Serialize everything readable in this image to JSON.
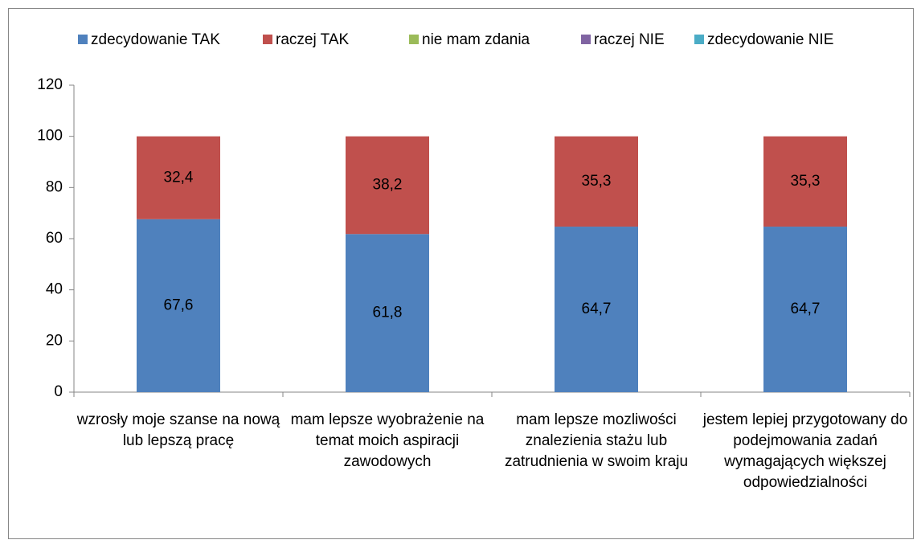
{
  "chart_data": {
    "type": "stacked_bar",
    "categories": [
      "wzrosły moje szanse na nową lub lepszą pracę",
      "mam lepsze wyobrażenie na temat moich aspiracji zawodowych",
      "mam lepsze mozliwości znalezienia stażu lub zatrudnienia w swoim kraju",
      "jestem lepiej przygotowany do podejmowania zadań wymagających większej odpowiedzialności"
    ],
    "series": [
      {
        "name": "zdecydowanie TAK",
        "color": "#4f81bd",
        "values": [
          67.6,
          61.8,
          64.7,
          64.7
        ],
        "value_labels": [
          "67,6",
          "61,8",
          "64,7",
          "64,7"
        ]
      },
      {
        "name": "raczej TAK",
        "color": "#c0504d",
        "values": [
          32.4,
          38.2,
          35.3,
          35.3
        ],
        "value_labels": [
          "32,4",
          "38,2",
          "35,3",
          "35,3"
        ]
      },
      {
        "name": "nie mam zdania",
        "color": "#9bbb59",
        "values": [
          0,
          0,
          0,
          0
        ]
      },
      {
        "name": "raczej NIE",
        "color": "#8064a2",
        "values": [
          0,
          0,
          0,
          0
        ]
      },
      {
        "name": "zdecydowanie NIE",
        "color": "#4bacc6",
        "values": [
          0,
          0,
          0,
          0
        ]
      }
    ],
    "ylim": [
      0,
      120
    ],
    "yticks": [
      0,
      20,
      40,
      60,
      80,
      100,
      120
    ],
    "grid": false,
    "legend": "top"
  }
}
